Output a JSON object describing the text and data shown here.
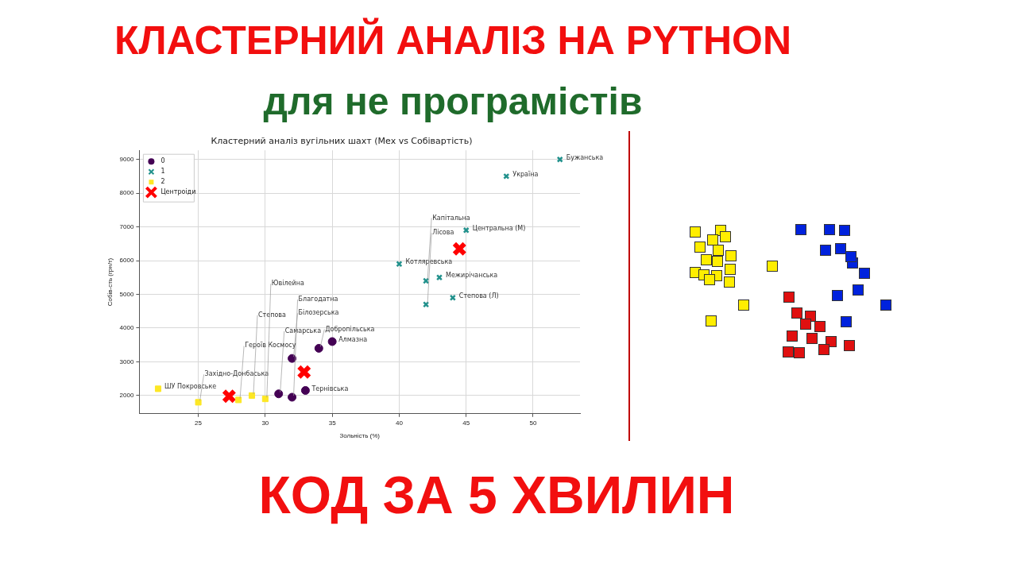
{
  "chart_data": {
    "type": "scatter",
    "title": "Кластерний аналіз вугільних шахт (Mex vs Собівартість)",
    "xlabel": "Зольність (%)",
    "ylabel": "Собів-сть (грн/т)",
    "xlim": [
      20.6,
      53.5
    ],
    "xticks": [
      25,
      30,
      35,
      40,
      45,
      50
    ],
    "ylim": [
      1460,
      9270
    ],
    "yticks": [
      2000,
      3000,
      4000,
      5000,
      6000,
      7000,
      8000,
      9000
    ],
    "grid": true,
    "legend": "top left",
    "series": [
      {
        "name": "0",
        "color": "#440154",
        "marker": "circle",
        "x": [
          35,
          34,
          32,
          33,
          31,
          32
        ],
        "values": [
          3600,
          3400,
          3100,
          2150,
          2050,
          1950
        ]
      },
      {
        "name": "1",
        "color": "#21918c",
        "marker": "cross",
        "x": [
          52,
          48,
          45,
          40,
          43,
          42,
          44,
          42
        ],
        "values": [
          9000,
          8500,
          6900,
          5900,
          5500,
          5400,
          4900,
          4700
        ]
      },
      {
        "name": "2",
        "color": "#fde725",
        "marker": "square",
        "x": [
          22,
          25,
          28,
          29,
          30
        ],
        "values": [
          2200,
          1800,
          1870,
          2000,
          1900
        ]
      },
      {
        "name": "Центроіди",
        "color": "#ff0000",
        "marker": "cross",
        "x": [
          27.3,
          32.9,
          44.5
        ],
        "values": [
          1980,
          2700,
          6350
        ]
      }
    ],
    "annotations": [
      "КЛАСТЕРНИЙ АНАЛІЗ НА PYTHON",
      "для не програмістів",
      "КОД ЗА 5 ХВИЛИН",
      {
        "text": "Алмазна",
        "x": 35,
        "y": 3600
      },
      {
        "text": "Добропільська",
        "x": 34,
        "y": 3400
      },
      {
        "text": "Білозерська",
        "x": 32,
        "y": 3100
      },
      {
        "text": "Тернівська",
        "x": 33,
        "y": 2150
      },
      {
        "text": "Самарська",
        "x": 31,
        "y": 2050
      },
      {
        "text": "Благодатна",
        "x": 32,
        "y": 1950
      },
      {
        "text": "Бужанська",
        "x": 52,
        "y": 9000
      },
      {
        "text": "Україна",
        "x": 48,
        "y": 8500
      },
      {
        "text": "Центральна (М)",
        "x": 45,
        "y": 6900
      },
      {
        "text": "Котляревська",
        "x": 40,
        "y": 5900
      },
      {
        "text": "Межирічанська",
        "x": 43,
        "y": 5500
      },
      {
        "text": "Капітальна",
        "x": 42,
        "y": 5400
      },
      {
        "text": "Степова (Л)",
        "x": 44,
        "y": 4900
      },
      {
        "text": "Лісова",
        "x": 42,
        "y": 4700
      },
      {
        "text": "ШУ Покровське",
        "x": 22,
        "y": 2200
      },
      {
        "text": "Західно-Донбаська",
        "x": 25,
        "y": 1800
      },
      {
        "text": "Героїв Космосу",
        "x": 28,
        "y": 1870
      },
      {
        "text": "Степова",
        "x": 29,
        "y": 2000
      },
      {
        "text": "Ювілейна",
        "x": 30,
        "y": 1900
      }
    ]
  }
}
